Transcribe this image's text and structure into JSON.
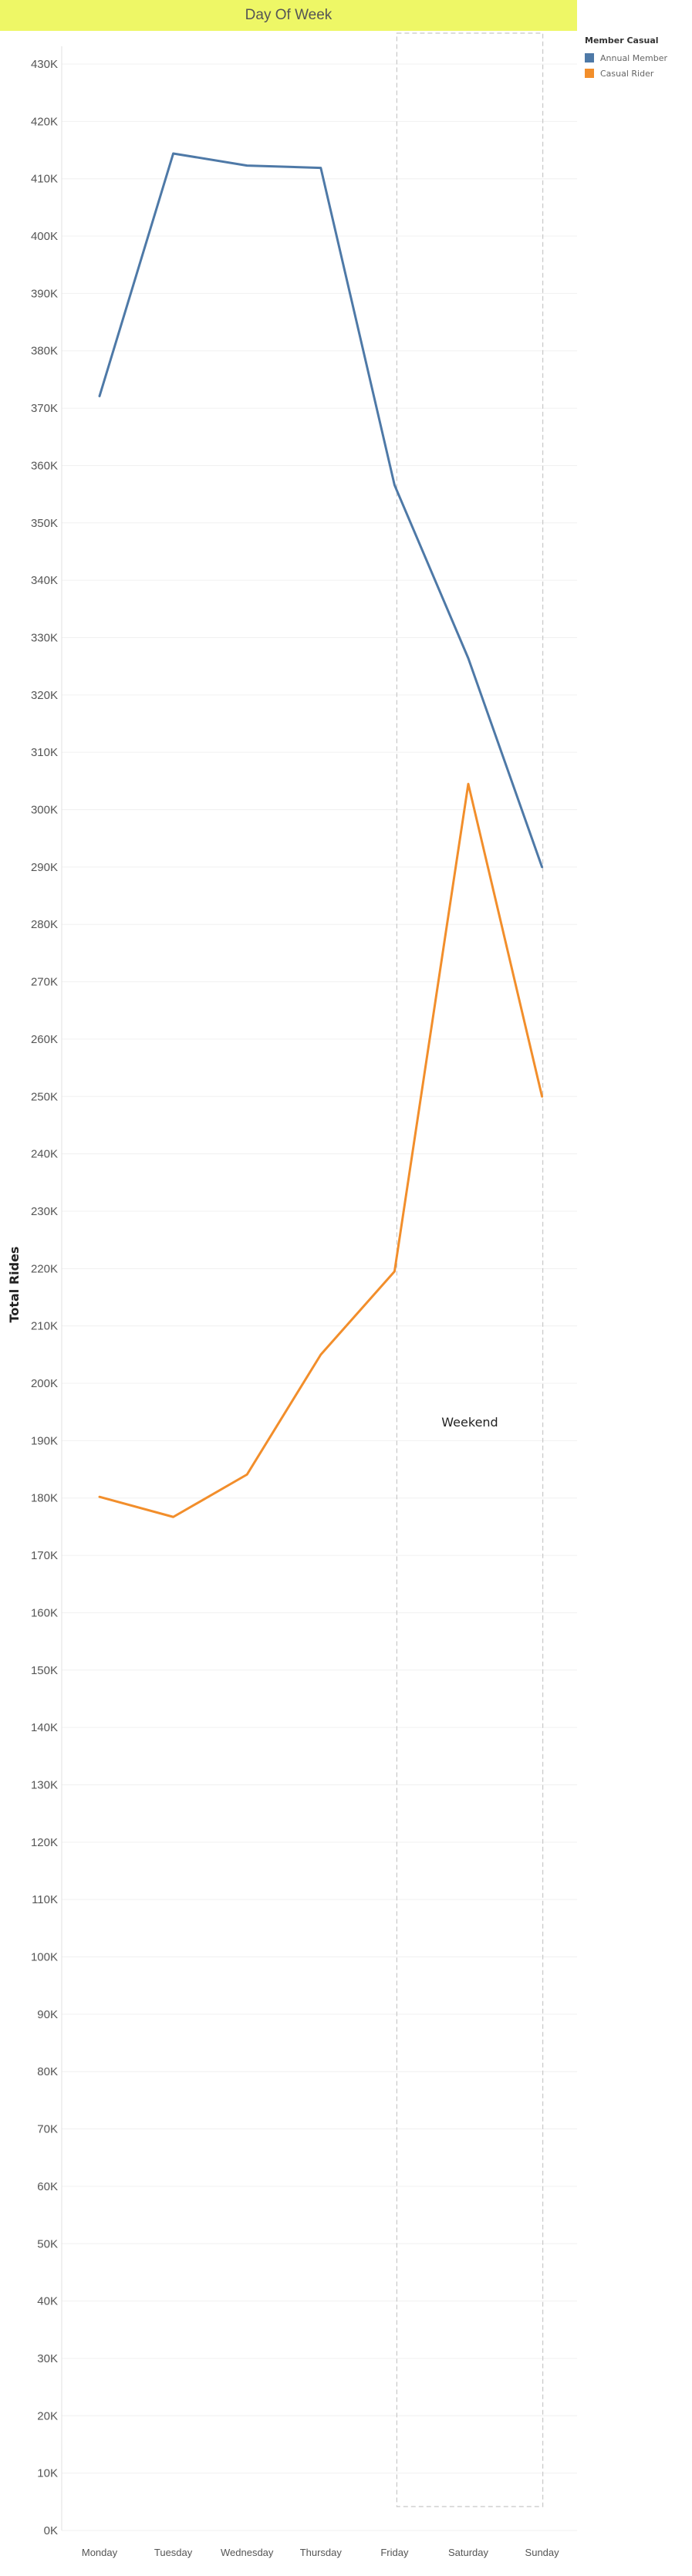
{
  "header": {
    "title": "Day Of Week"
  },
  "legend": {
    "title": "Member Casual",
    "items": [
      {
        "label": "Annual Member",
        "color": "#4e79a7"
      },
      {
        "label": "Casual Rider",
        "color": "#f28e2b"
      }
    ]
  },
  "chart_data": {
    "type": "line",
    "title": "Day Of Week",
    "xlabel": "",
    "ylabel": "Total Rides",
    "categories": [
      "Monday",
      "Tuesday",
      "Wednesday",
      "Thursday",
      "Friday",
      "Saturday",
      "Sunday"
    ],
    "series": [
      {
        "name": "Annual Member",
        "color": "#4e79a7",
        "values": [
          372100,
          414400,
          412300,
          411900,
          356600,
          326400,
          290000
        ]
      },
      {
        "name": "Casual Rider",
        "color": "#f28e2b",
        "values": [
          180200,
          176700,
          184100,
          205000,
          219500,
          304500,
          250000
        ]
      }
    ],
    "ylim": [
      0,
      430000
    ],
    "yticks": [
      0,
      10000,
      20000,
      30000,
      40000,
      50000,
      60000,
      70000,
      80000,
      90000,
      100000,
      110000,
      120000,
      130000,
      140000,
      150000,
      160000,
      170000,
      180000,
      190000,
      200000,
      210000,
      220000,
      230000,
      240000,
      250000,
      260000,
      270000,
      280000,
      290000,
      300000,
      310000,
      320000,
      330000,
      340000,
      350000,
      360000,
      370000,
      380000,
      390000,
      400000,
      410000,
      420000,
      430000
    ],
    "ytick_labels": [
      "0K",
      "10K",
      "20K",
      "30K",
      "40K",
      "50K",
      "60K",
      "70K",
      "80K",
      "90K",
      "100K",
      "110K",
      "120K",
      "130K",
      "140K",
      "150K",
      "160K",
      "170K",
      "180K",
      "190K",
      "200K",
      "210K",
      "220K",
      "230K",
      "240K",
      "250K",
      "260K",
      "270K",
      "280K",
      "290K",
      "300K",
      "310K",
      "320K",
      "330K",
      "340K",
      "350K",
      "360K",
      "370K",
      "380K",
      "390K",
      "400K",
      "410K",
      "420K",
      "430K"
    ],
    "grid": true,
    "legend_position": "top-right",
    "annotation": {
      "label": "Weekend",
      "from": "Friday",
      "to": "Sunday"
    }
  }
}
